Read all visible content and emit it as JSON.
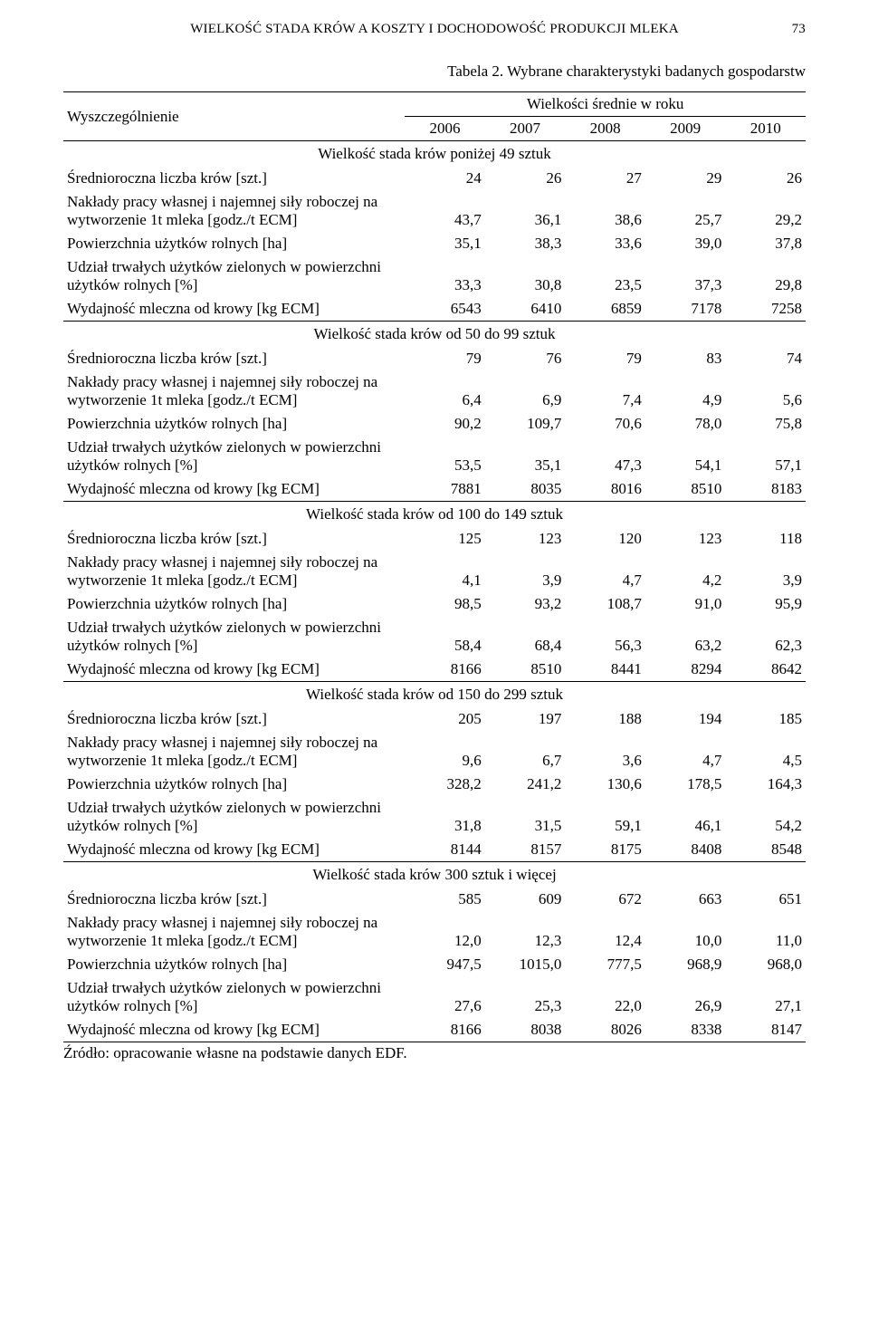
{
  "header": {
    "running_title": "WIELKOŚĆ STADA KRÓW A KOSZTY I DOCHODOWOŚĆ PRODUKCJI MLEKA",
    "page_number": "73"
  },
  "caption": "Tabela 2. Wybrane charakterystyki badanych gospodarstw",
  "col_header": {
    "label": "Wyszczególnienie",
    "group": "Wielkości średnie w roku",
    "years": [
      "2006",
      "2007",
      "2008",
      "2009",
      "2010"
    ]
  },
  "row_labels": {
    "herd": "Średnioroczna liczba krów [szt.]",
    "labor": "Nakłady pracy własnej i najemnej siły roboczej na wytworzenie 1t mleka [godz./t ECM]",
    "area": "Powierzchnia użytków rolnych [ha]",
    "grass": "Udział trwałych użytków zielonych w powierzchni użytków rolnych [%]",
    "yield": "Wydajność mleczna od krowy [kg ECM]"
  },
  "sections": [
    {
      "title": "Wielkość stada krów poniżej 49 sztuk",
      "herd": [
        "24",
        "26",
        "27",
        "29",
        "26"
      ],
      "labor": [
        "43,7",
        "36,1",
        "38,6",
        "25,7",
        "29,2"
      ],
      "area": [
        "35,1",
        "38,3",
        "33,6",
        "39,0",
        "37,8"
      ],
      "grass": [
        "33,3",
        "30,8",
        "23,5",
        "37,3",
        "29,8"
      ],
      "yield": [
        "6543",
        "6410",
        "6859",
        "7178",
        "7258"
      ]
    },
    {
      "title": "Wielkość stada krów od 50 do 99 sztuk",
      "herd": [
        "79",
        "76",
        "79",
        "83",
        "74"
      ],
      "labor": [
        "6,4",
        "6,9",
        "7,4",
        "4,9",
        "5,6"
      ],
      "area": [
        "90,2",
        "109,7",
        "70,6",
        "78,0",
        "75,8"
      ],
      "grass": [
        "53,5",
        "35,1",
        "47,3",
        "54,1",
        "57,1"
      ],
      "yield": [
        "7881",
        "8035",
        "8016",
        "8510",
        "8183"
      ]
    },
    {
      "title": "Wielkość stada krów od 100 do 149 sztuk",
      "herd": [
        "125",
        "123",
        "120",
        "123",
        "118"
      ],
      "labor": [
        "4,1",
        "3,9",
        "4,7",
        "4,2",
        "3,9"
      ],
      "area": [
        "98,5",
        "93,2",
        "108,7",
        "91,0",
        "95,9"
      ],
      "grass": [
        "58,4",
        "68,4",
        "56,3",
        "63,2",
        "62,3"
      ],
      "yield": [
        "8166",
        "8510",
        "8441",
        "8294",
        "8642"
      ]
    },
    {
      "title": "Wielkość stada krów od 150 do 299 sztuk",
      "herd": [
        "205",
        "197",
        "188",
        "194",
        "185"
      ],
      "labor": [
        "9,6",
        "6,7",
        "3,6",
        "4,7",
        "4,5"
      ],
      "area": [
        "328,2",
        "241,2",
        "130,6",
        "178,5",
        "164,3"
      ],
      "grass": [
        "31,8",
        "31,5",
        "59,1",
        "46,1",
        "54,2"
      ],
      "yield": [
        "8144",
        "8157",
        "8175",
        "8408",
        "8548"
      ]
    },
    {
      "title": "Wielkość stada krów 300 sztuk i więcej",
      "herd": [
        "585",
        "609",
        "672",
        "663",
        "651"
      ],
      "labor": [
        "12,0",
        "12,3",
        "12,4",
        "10,0",
        "11,0"
      ],
      "area": [
        "947,5",
        "1015,0",
        "777,5",
        "968,9",
        "968,0"
      ],
      "grass": [
        "27,6",
        "25,3",
        "22,0",
        "26,9",
        "27,1"
      ],
      "yield": [
        "8166",
        "8038",
        "8026",
        "8338",
        "8147"
      ]
    }
  ],
  "source": "Źródło: opracowanie własne na podstawie danych EDF."
}
